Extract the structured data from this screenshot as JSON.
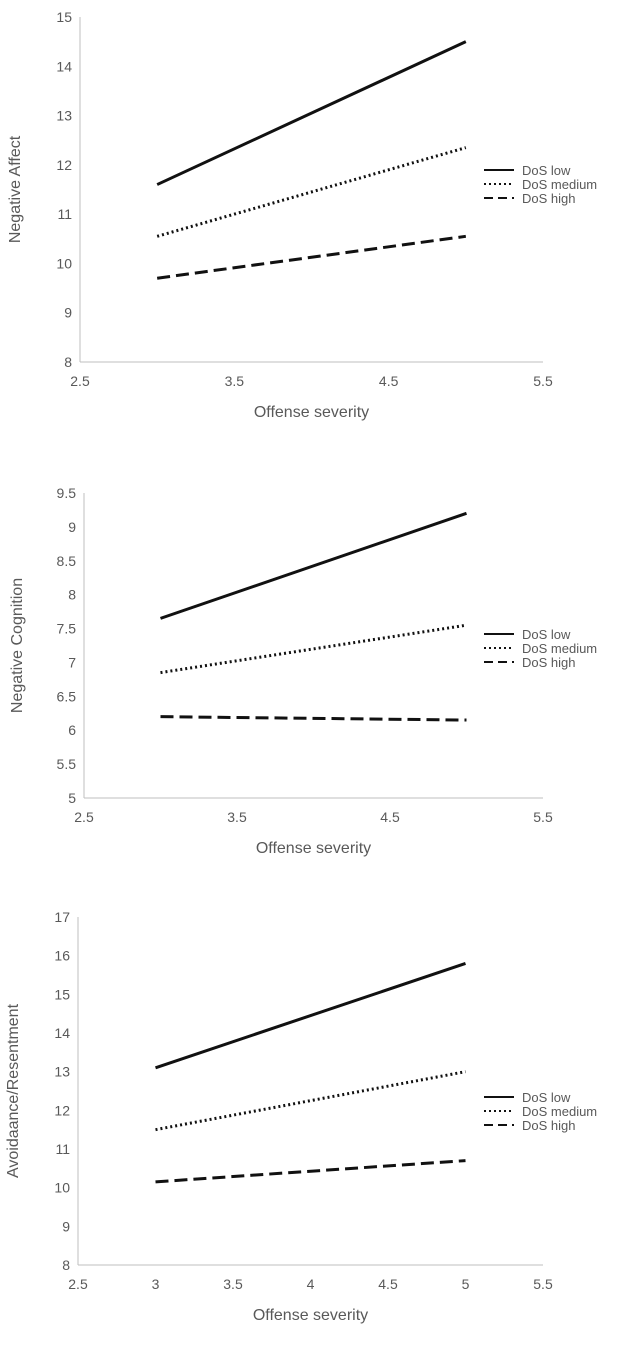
{
  "chart_data": [
    {
      "type": "line",
      "xlabel": "Offense severity",
      "ylabel": "Negative Affect",
      "xlim": [
        2.5,
        5.5
      ],
      "ylim": [
        8,
        15
      ],
      "xticks": [
        "2.5",
        "3.5",
        "4.5",
        "5.5"
      ],
      "yticks": [
        "8",
        "9",
        "10",
        "11",
        "12",
        "13",
        "14",
        "15"
      ],
      "grid": false,
      "legend_position": "right",
      "series": [
        {
          "name": "DoS low",
          "style": "solid",
          "x": [
            3,
            5
          ],
          "y": [
            11.6,
            14.5
          ]
        },
        {
          "name": "DoS medium",
          "style": "dotted",
          "x": [
            3,
            5
          ],
          "y": [
            10.55,
            12.35
          ]
        },
        {
          "name": "DoS high",
          "style": "dashed",
          "x": [
            3,
            5
          ],
          "y": [
            9.7,
            10.55
          ]
        }
      ]
    },
    {
      "type": "line",
      "xlabel": "Offense severity",
      "ylabel": "Negative Cognition",
      "xlim": [
        2.5,
        5.5
      ],
      "ylim": [
        5,
        9.5
      ],
      "xticks": [
        "2.5",
        "3.5",
        "4.5",
        "5.5"
      ],
      "yticks": [
        "5",
        "5.5",
        "6",
        "6.5",
        "7",
        "7.5",
        "8",
        "8.5",
        "9",
        "9.5"
      ],
      "grid": false,
      "legend_position": "right",
      "series": [
        {
          "name": "DoS low",
          "style": "solid",
          "x": [
            3,
            5
          ],
          "y": [
            7.65,
            9.2
          ]
        },
        {
          "name": "DoS medium",
          "style": "dotted",
          "x": [
            3,
            5
          ],
          "y": [
            6.85,
            7.55
          ]
        },
        {
          "name": "DoS high",
          "style": "dashed",
          "x": [
            3,
            5
          ],
          "y": [
            6.2,
            6.15
          ]
        }
      ]
    },
    {
      "type": "line",
      "xlabel": "Offense severity",
      "ylabel": "Avoidaance/Resentment",
      "xlim": [
        2.5,
        5.5
      ],
      "ylim": [
        8,
        17
      ],
      "xticks": [
        "2.5",
        "3",
        "3.5",
        "4",
        "4.5",
        "5",
        "5.5"
      ],
      "yticks": [
        "8",
        "9",
        "10",
        "11",
        "12",
        "13",
        "14",
        "15",
        "16",
        "17"
      ],
      "grid": false,
      "legend_position": "right",
      "series": [
        {
          "name": "DoS low",
          "style": "solid",
          "x": [
            3,
            5
          ],
          "y": [
            13.1,
            15.8
          ]
        },
        {
          "name": "DoS medium",
          "style": "dotted",
          "x": [
            3,
            5
          ],
          "y": [
            11.5,
            13.0
          ]
        },
        {
          "name": "DoS high",
          "style": "dashed",
          "x": [
            3,
            5
          ],
          "y": [
            10.15,
            10.7
          ]
        }
      ]
    }
  ]
}
